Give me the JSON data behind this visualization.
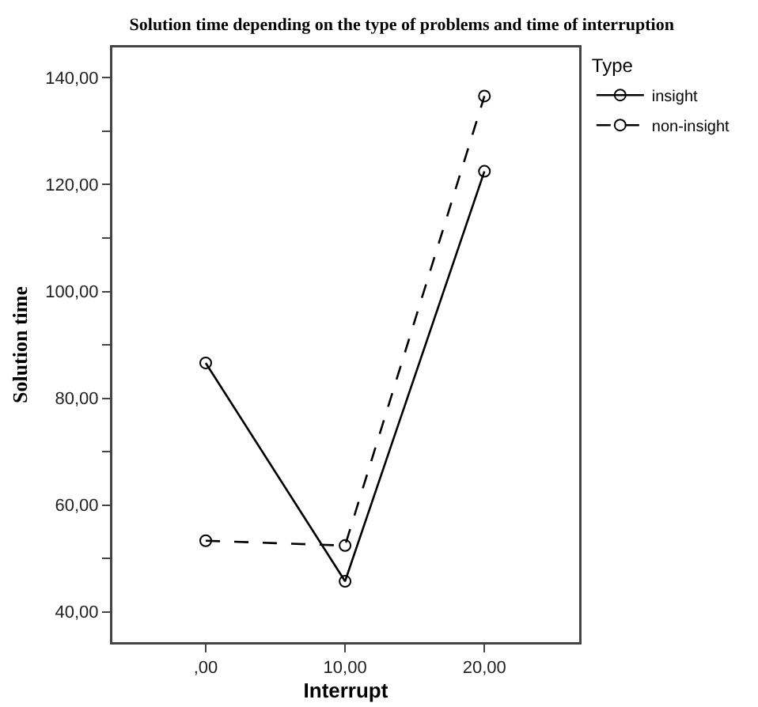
{
  "chart_data": {
    "type": "line",
    "title": "Solution time depending on the type of problems and time of interruption",
    "xlabel": "Interrupt",
    "ylabel": "Solution time",
    "legend_title": "Type",
    "x": [
      0,
      10,
      20
    ],
    "series": [
      {
        "name": "insight",
        "color": "#000000",
        "line_style": "solid",
        "values": [
          86.6,
          45.7,
          122.5
        ]
      },
      {
        "name": "non-insight",
        "color": "#000000",
        "line_style": "dashed",
        "values": [
          53.3,
          52.4,
          136.6
        ]
      }
    ],
    "xlim": [
      -6.7,
      26.8
    ],
    "xticks": [
      {
        "value": 0,
        "label": ",00"
      },
      {
        "value": 10,
        "label": "10,00"
      },
      {
        "value": 20,
        "label": "20,00"
      }
    ],
    "ylim": [
      34.3,
      145.7
    ],
    "yticks": [
      {
        "value": 40,
        "label": "40,00"
      },
      {
        "value": 50,
        "label": null
      },
      {
        "value": 60,
        "label": "60,00"
      },
      {
        "value": 70,
        "label": null
      },
      {
        "value": 80,
        "label": "80,00"
      },
      {
        "value": 90,
        "label": null
      },
      {
        "value": 100,
        "label": "100,00"
      },
      {
        "value": 110,
        "label": null
      },
      {
        "value": 120,
        "label": "120,00"
      },
      {
        "value": 130,
        "label": null
      },
      {
        "value": 140,
        "label": "140,00"
      }
    ],
    "grid": false,
    "legend": "top right",
    "marker": "circle"
  }
}
